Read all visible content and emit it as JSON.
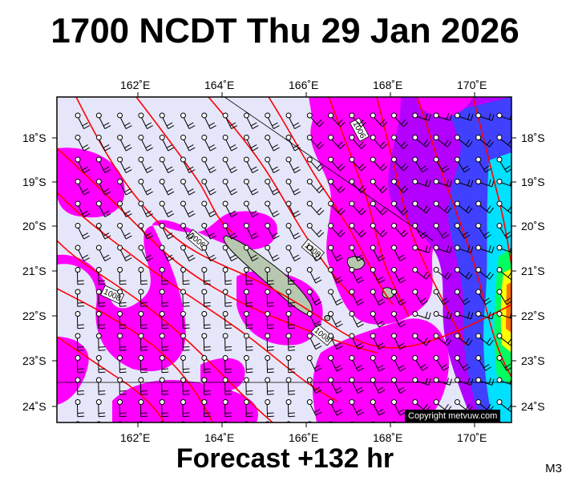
{
  "title": "1700 NCDT Thu 29 Jan 2026",
  "footer": "Forecast +132 hr",
  "corner_label": "M3",
  "copyright": "Copyright metvuw.com",
  "longitude_labels": [
    "162˚E",
    "164˚E",
    "166˚E",
    "168˚E",
    "170˚E"
  ],
  "latitude_labels": [
    "18˚S",
    "19˚S",
    "20˚S",
    "21˚S",
    "22˚S",
    "23˚S",
    "24˚S"
  ],
  "isobar_labels": [
    "1006",
    "1006",
    "1008",
    "1008",
    "1008"
  ],
  "colors": {
    "background": "#e6e6fa",
    "rain_magenta": "#ff00ff",
    "rain_purple": "#b400ff",
    "rain_blue": "#4040ff",
    "rain_cyan": "#00e0ff",
    "rain_green": "#00ff60",
    "rain_yellow": "#ffff00",
    "rain_orange": "#ff7000",
    "isobar": "#ff0000",
    "land": "#b8c8b0"
  }
}
